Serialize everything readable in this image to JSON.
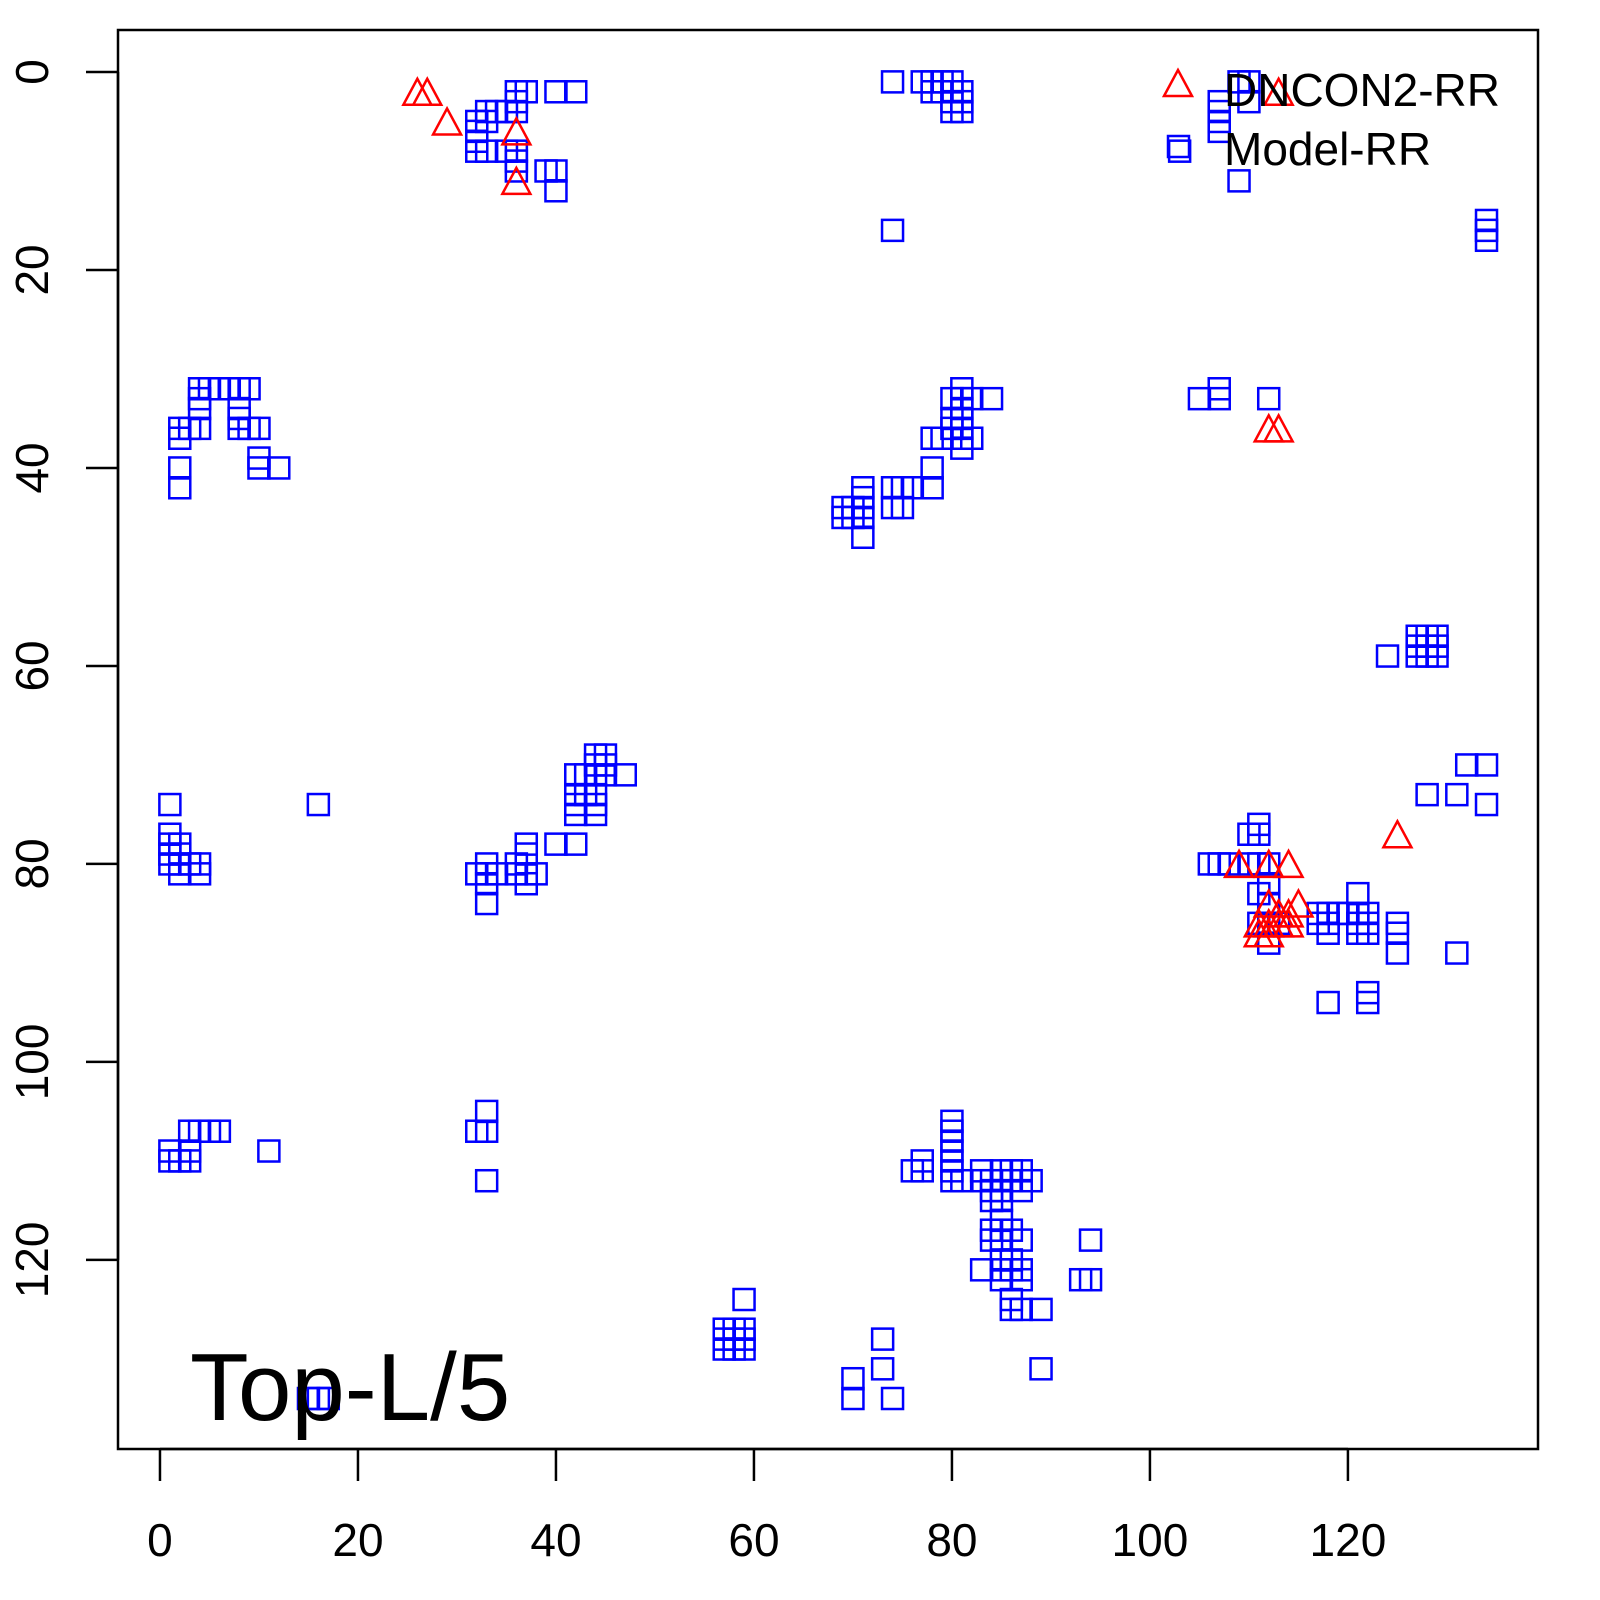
{
  "chart_data": {
    "type": "scatter",
    "title": "",
    "xlabel": "",
    "ylabel": "",
    "xlim": [
      -4.24,
      139.2
    ],
    "ylim": [
      -4.24,
      139.1
    ],
    "y_reversed": true,
    "grid": false,
    "x_ticks": [
      0,
      20,
      40,
      60,
      80,
      100,
      120
    ],
    "y_ticks": [
      0,
      20,
      40,
      60,
      80,
      100,
      120
    ],
    "annotation": "Top-L/5",
    "legend_placement": "top-right",
    "series": [
      {
        "name": "DNCON2-RR",
        "marker": "triangle",
        "color": "#ff0000",
        "points": [
          [
            26,
            2
          ],
          [
            27,
            2
          ],
          [
            29,
            5
          ],
          [
            36,
            6
          ],
          [
            36,
            11
          ],
          [
            112,
            36
          ],
          [
            113,
            36
          ],
          [
            113,
            2
          ],
          [
            109,
            80
          ],
          [
            112,
            80
          ],
          [
            114,
            80
          ],
          [
            125,
            77
          ],
          [
            112,
            84
          ],
          [
            113,
            85
          ],
          [
            114,
            85
          ],
          [
            115,
            84
          ],
          [
            111,
            87
          ],
          [
            112,
            87
          ],
          [
            113,
            86
          ],
          [
            112,
            86
          ],
          [
            111,
            86
          ],
          [
            114,
            86
          ]
        ]
      },
      {
        "name": "Model-RR",
        "marker": "square",
        "color": "#0000ff",
        "points": [
          [
            36,
            2
          ],
          [
            37,
            2
          ],
          [
            36,
            3
          ],
          [
            36,
            4
          ],
          [
            35,
            4
          ],
          [
            33,
            4
          ],
          [
            34,
            4
          ],
          [
            32,
            5
          ],
          [
            33,
            5
          ],
          [
            32,
            6
          ],
          [
            32,
            7
          ],
          [
            32,
            8
          ],
          [
            33,
            8
          ],
          [
            35,
            8
          ],
          [
            36,
            8
          ],
          [
            36,
            9
          ],
          [
            36,
            10
          ],
          [
            39,
            10
          ],
          [
            40,
            10
          ],
          [
            40,
            12
          ],
          [
            40,
            2
          ],
          [
            42,
            2
          ],
          [
            74,
            1
          ],
          [
            77,
            1
          ],
          [
            78,
            1
          ],
          [
            79,
            1
          ],
          [
            80,
            1
          ],
          [
            78,
            2
          ],
          [
            79,
            2
          ],
          [
            80,
            2
          ],
          [
            81,
            2
          ],
          [
            80,
            3
          ],
          [
            81,
            3
          ],
          [
            80,
            4
          ],
          [
            81,
            4
          ],
          [
            74,
            16
          ],
          [
            107,
            3
          ],
          [
            107,
            4
          ],
          [
            107,
            5
          ],
          [
            107,
            6
          ],
          [
            109,
            1
          ],
          [
            110,
            1
          ],
          [
            110,
            3
          ],
          [
            103,
            8
          ],
          [
            109,
            11
          ],
          [
            134,
            15
          ],
          [
            134,
            16
          ],
          [
            134,
            17
          ],
          [
            4,
            32
          ],
          [
            5,
            32
          ],
          [
            6,
            32
          ],
          [
            7,
            32
          ],
          [
            8,
            32
          ],
          [
            9,
            32
          ],
          [
            4,
            33
          ],
          [
            4,
            34
          ],
          [
            8,
            34
          ],
          [
            8,
            35
          ],
          [
            4,
            36
          ],
          [
            3,
            36
          ],
          [
            2,
            36
          ],
          [
            2,
            37
          ],
          [
            8,
            36
          ],
          [
            9,
            36
          ],
          [
            10,
            36
          ],
          [
            10,
            39
          ],
          [
            10,
            40
          ],
          [
            12,
            40
          ],
          [
            2,
            40
          ],
          [
            2,
            42
          ],
          [
            81,
            32
          ],
          [
            81,
            33
          ],
          [
            80,
            33
          ],
          [
            82,
            33
          ],
          [
            84,
            33
          ],
          [
            81,
            34
          ],
          [
            80,
            35
          ],
          [
            81,
            35
          ],
          [
            80,
            36
          ],
          [
            81,
            36
          ],
          [
            82,
            37
          ],
          [
            78,
            37
          ],
          [
            79,
            37
          ],
          [
            81,
            37
          ],
          [
            81,
            38
          ],
          [
            78,
            40
          ],
          [
            78,
            42
          ],
          [
            74,
            42
          ],
          [
            75,
            42
          ],
          [
            76,
            42
          ],
          [
            74,
            44
          ],
          [
            75,
            44
          ],
          [
            71,
            42
          ],
          [
            71,
            43
          ],
          [
            70,
            44
          ],
          [
            71,
            44
          ],
          [
            69,
            44
          ],
          [
            69,
            45
          ],
          [
            70,
            45
          ],
          [
            71,
            45
          ],
          [
            71,
            47
          ],
          [
            105,
            33
          ],
          [
            107,
            32
          ],
          [
            107,
            33
          ],
          [
            112,
            33
          ],
          [
            124,
            59
          ],
          [
            127,
            57
          ],
          [
            128,
            57
          ],
          [
            129,
            57
          ],
          [
            127,
            58
          ],
          [
            128,
            58
          ],
          [
            129,
            58
          ],
          [
            127,
            59
          ],
          [
            128,
            59
          ],
          [
            129,
            59
          ],
          [
            132,
            70
          ],
          [
            134,
            70
          ],
          [
            134,
            74
          ],
          [
            128,
            73
          ],
          [
            131,
            73
          ],
          [
            1,
            74
          ],
          [
            1,
            77
          ],
          [
            1,
            78
          ],
          [
            2,
            78
          ],
          [
            1,
            79
          ],
          [
            2,
            79
          ],
          [
            1,
            80
          ],
          [
            2,
            80
          ],
          [
            3,
            80
          ],
          [
            4,
            80
          ],
          [
            2,
            81
          ],
          [
            4,
            81
          ],
          [
            16,
            74
          ],
          [
            44,
            69
          ],
          [
            45,
            69
          ],
          [
            44,
            70
          ],
          [
            45,
            70
          ],
          [
            44,
            71
          ],
          [
            45,
            71
          ],
          [
            42,
            71
          ],
          [
            43,
            71
          ],
          [
            47,
            71
          ],
          [
            42,
            73
          ],
          [
            43,
            73
          ],
          [
            44,
            73
          ],
          [
            42,
            74
          ],
          [
            44,
            74
          ],
          [
            42,
            75
          ],
          [
            44,
            75
          ],
          [
            40,
            78
          ],
          [
            42,
            78
          ],
          [
            37,
            78
          ],
          [
            37,
            79
          ],
          [
            36,
            80
          ],
          [
            33,
            80
          ],
          [
            32,
            81
          ],
          [
            33,
            81
          ],
          [
            34,
            81
          ],
          [
            36,
            81
          ],
          [
            37,
            81
          ],
          [
            38,
            81
          ],
          [
            37,
            82
          ],
          [
            33,
            82
          ],
          [
            33,
            84
          ],
          [
            111,
            76
          ],
          [
            111,
            77
          ],
          [
            110,
            77
          ],
          [
            106,
            80
          ],
          [
            107,
            80
          ],
          [
            108,
            80
          ],
          [
            110,
            80
          ],
          [
            111,
            80
          ],
          [
            112,
            80
          ],
          [
            112,
            82
          ],
          [
            111,
            83
          ],
          [
            112,
            84
          ],
          [
            111,
            86
          ],
          [
            112,
            86
          ],
          [
            113,
            86
          ],
          [
            112,
            88
          ],
          [
            117,
            85
          ],
          [
            118,
            85
          ],
          [
            119,
            85
          ],
          [
            117,
            86
          ],
          [
            118,
            86
          ],
          [
            118,
            87
          ],
          [
            121,
            83
          ],
          [
            120,
            85
          ],
          [
            121,
            85
          ],
          [
            122,
            85
          ],
          [
            121,
            86
          ],
          [
            122,
            86
          ],
          [
            121,
            87
          ],
          [
            122,
            87
          ],
          [
            125,
            86
          ],
          [
            125,
            87
          ],
          [
            125,
            89
          ],
          [
            131,
            89
          ],
          [
            118,
            94
          ],
          [
            122,
            93
          ],
          [
            122,
            94
          ],
          [
            1,
            109
          ],
          [
            1,
            110
          ],
          [
            2,
            110
          ],
          [
            3,
            109
          ],
          [
            3,
            110
          ],
          [
            3,
            107
          ],
          [
            4,
            107
          ],
          [
            5,
            107
          ],
          [
            6,
            107
          ],
          [
            11,
            109
          ],
          [
            33,
            105
          ],
          [
            32,
            107
          ],
          [
            33,
            107
          ],
          [
            33,
            112
          ],
          [
            80,
            106
          ],
          [
            80,
            107
          ],
          [
            80,
            108
          ],
          [
            80,
            109
          ],
          [
            80,
            110
          ],
          [
            80,
            111
          ],
          [
            80,
            112
          ],
          [
            81,
            112
          ],
          [
            76,
            111
          ],
          [
            77,
            110
          ],
          [
            77,
            111
          ],
          [
            83,
            111
          ],
          [
            83,
            112
          ],
          [
            84,
            112
          ],
          [
            85,
            111
          ],
          [
            86,
            111
          ],
          [
            87,
            111
          ],
          [
            85,
            112
          ],
          [
            86,
            112
          ],
          [
            88,
            112
          ],
          [
            84,
            113
          ],
          [
            85,
            113
          ],
          [
            87,
            113
          ],
          [
            84,
            114
          ],
          [
            85,
            114
          ],
          [
            85,
            116
          ],
          [
            84,
            117
          ],
          [
            85,
            117
          ],
          [
            86,
            117
          ],
          [
            84,
            118
          ],
          [
            85,
            118
          ],
          [
            87,
            118
          ],
          [
            85,
            120
          ],
          [
            86,
            120
          ],
          [
            85,
            121
          ],
          [
            86,
            121
          ],
          [
            87,
            121
          ],
          [
            83,
            121
          ],
          [
            85,
            122
          ],
          [
            87,
            122
          ],
          [
            86,
            124
          ],
          [
            86,
            125
          ],
          [
            87,
            125
          ],
          [
            89,
            125
          ],
          [
            89,
            131
          ],
          [
            94,
            118
          ],
          [
            93,
            122
          ],
          [
            94,
            122
          ],
          [
            57,
            127
          ],
          [
            58,
            127
          ],
          [
            59,
            127
          ],
          [
            57,
            128
          ],
          [
            58,
            128
          ],
          [
            59,
            128
          ],
          [
            57,
            129
          ],
          [
            58,
            129
          ],
          [
            59,
            129
          ],
          [
            59,
            124
          ],
          [
            73,
            128
          ],
          [
            73,
            131
          ],
          [
            70,
            132
          ],
          [
            70,
            134
          ],
          [
            74,
            134
          ],
          [
            15,
            134
          ],
          [
            16,
            134
          ],
          [
            17,
            134
          ]
        ]
      }
    ]
  }
}
